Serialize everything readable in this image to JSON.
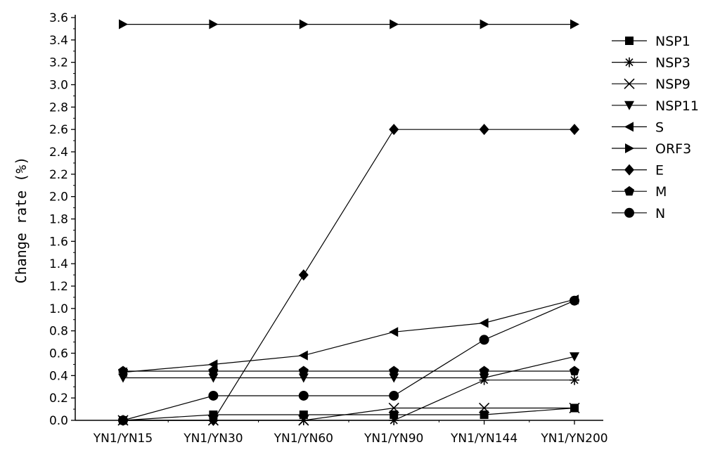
{
  "chart_data": {
    "type": "line",
    "title": "",
    "xlabel": "",
    "ylabel": "Change rate (%)",
    "categories": [
      "YN1/YN15",
      "YN1/YN30",
      "YN1/YN60",
      "YN1/YN90",
      "YN1/YN144",
      "YN1/YN200"
    ],
    "ylim": [
      0,
      3.6
    ],
    "yticks": [
      "0.0",
      "0.2",
      "0.4",
      "0.6",
      "0.8",
      "1.0",
      "1.2",
      "1.4",
      "1.6",
      "1.8",
      "2.0",
      "2.2",
      "2.4",
      "2.6",
      "2.8",
      "3.0",
      "3.2",
      "3.4",
      "3.6"
    ],
    "grid": false,
    "legend_position": "right",
    "series": [
      {
        "name": "NSP1",
        "marker": "square",
        "values": [
          0.0,
          0.05,
          0.05,
          0.05,
          0.05,
          0.11
        ]
      },
      {
        "name": "NSP3",
        "marker": "asterisk",
        "values": [
          0.0,
          0.0,
          0.0,
          0.0,
          0.36,
          0.36
        ]
      },
      {
        "name": "NSP9",
        "marker": "x",
        "values": [
          0.0,
          0.0,
          0.0,
          0.11,
          0.11,
          0.11
        ]
      },
      {
        "name": "NSP11",
        "marker": "triangle-down",
        "values": [
          0.38,
          0.38,
          0.38,
          0.38,
          0.38,
          0.57
        ]
      },
      {
        "name": "S",
        "marker": "triangle-left",
        "values": [
          0.43,
          0.5,
          0.58,
          0.79,
          0.87,
          1.08
        ]
      },
      {
        "name": "ORF3",
        "marker": "triangle-right",
        "values": [
          3.54,
          3.54,
          3.54,
          3.54,
          3.54,
          3.54
        ]
      },
      {
        "name": "E",
        "marker": "diamond",
        "values": [
          0.0,
          0.0,
          1.3,
          2.6,
          2.6,
          2.6
        ]
      },
      {
        "name": "M",
        "marker": "pentagon",
        "values": [
          0.44,
          0.44,
          0.44,
          0.44,
          0.44,
          0.44
        ]
      },
      {
        "name": "N",
        "marker": "circle",
        "values": [
          0.0,
          0.22,
          0.22,
          0.22,
          0.72,
          1.07
        ]
      }
    ]
  }
}
